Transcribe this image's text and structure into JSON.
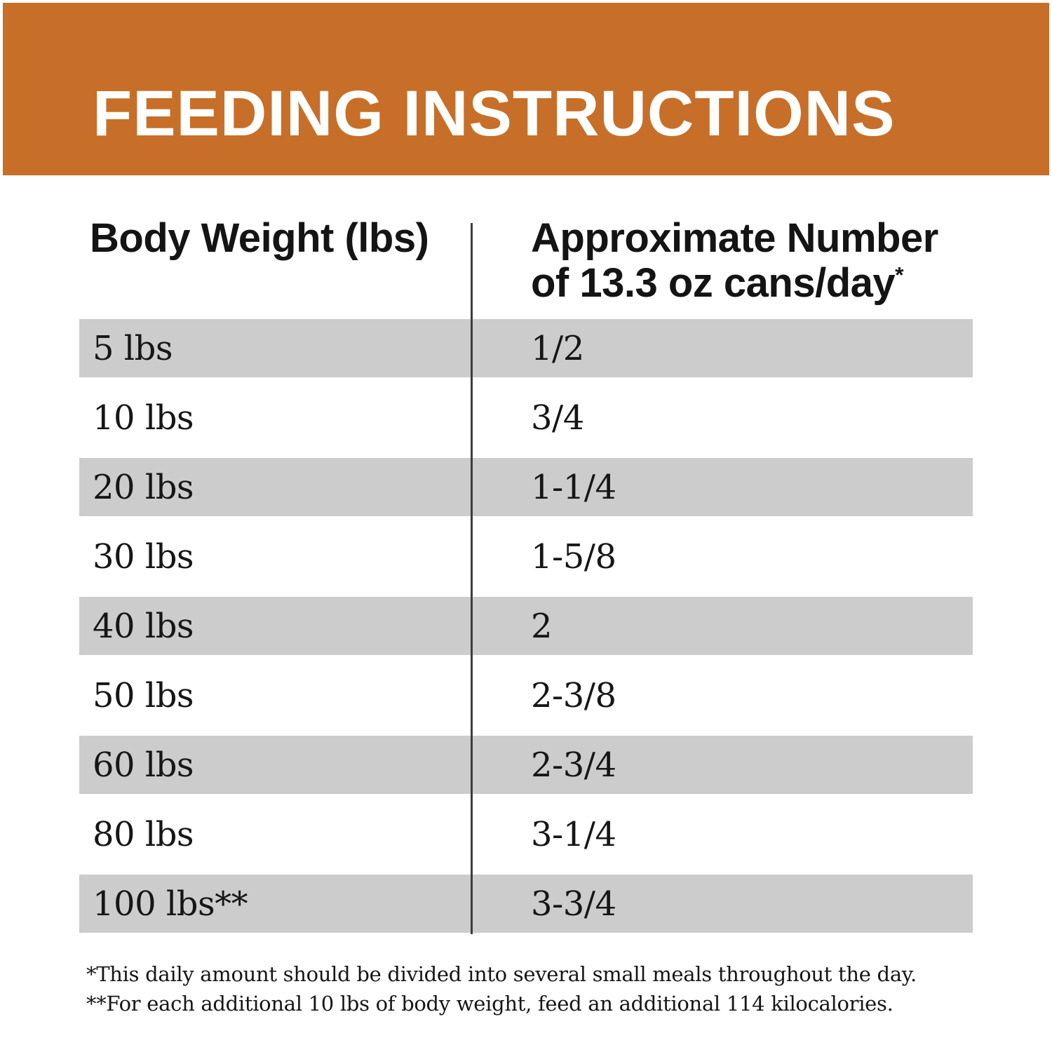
{
  "title": "FEEDING INSTRUCTIONS",
  "table": {
    "col1_header": "Body Weight (lbs)",
    "col2_header_line1": "Approximate Number",
    "col2_header_line2": "of 13.3 oz cans/day",
    "col2_header_note_marker": "*",
    "rows": [
      {
        "weight": "5 lbs",
        "cans": "1/2"
      },
      {
        "weight": "10 lbs",
        "cans": "3/4"
      },
      {
        "weight": "20 lbs",
        "cans": "1-1/4"
      },
      {
        "weight": "30 lbs",
        "cans": "1-5/8"
      },
      {
        "weight": "40 lbs",
        "cans": "2"
      },
      {
        "weight": "50 lbs",
        "cans": "2-3/8"
      },
      {
        "weight": "60 lbs",
        "cans": "2-3/4"
      },
      {
        "weight": "80 lbs",
        "cans": "3-1/4"
      },
      {
        "weight": "100 lbs**",
        "cans": "3-3/4"
      }
    ]
  },
  "footnotes": [
    "*This daily amount should be divided into several small meals throughout the day.",
    "**For each additional 10 lbs of body weight, feed an additional 114 kilocalories."
  ],
  "colors": {
    "header_band": "#C76F28",
    "row_stripe": "#CCCCCC",
    "text": "#1B1B1B",
    "divider": "#3D3D3D",
    "title_text": "#FFFFFF"
  }
}
